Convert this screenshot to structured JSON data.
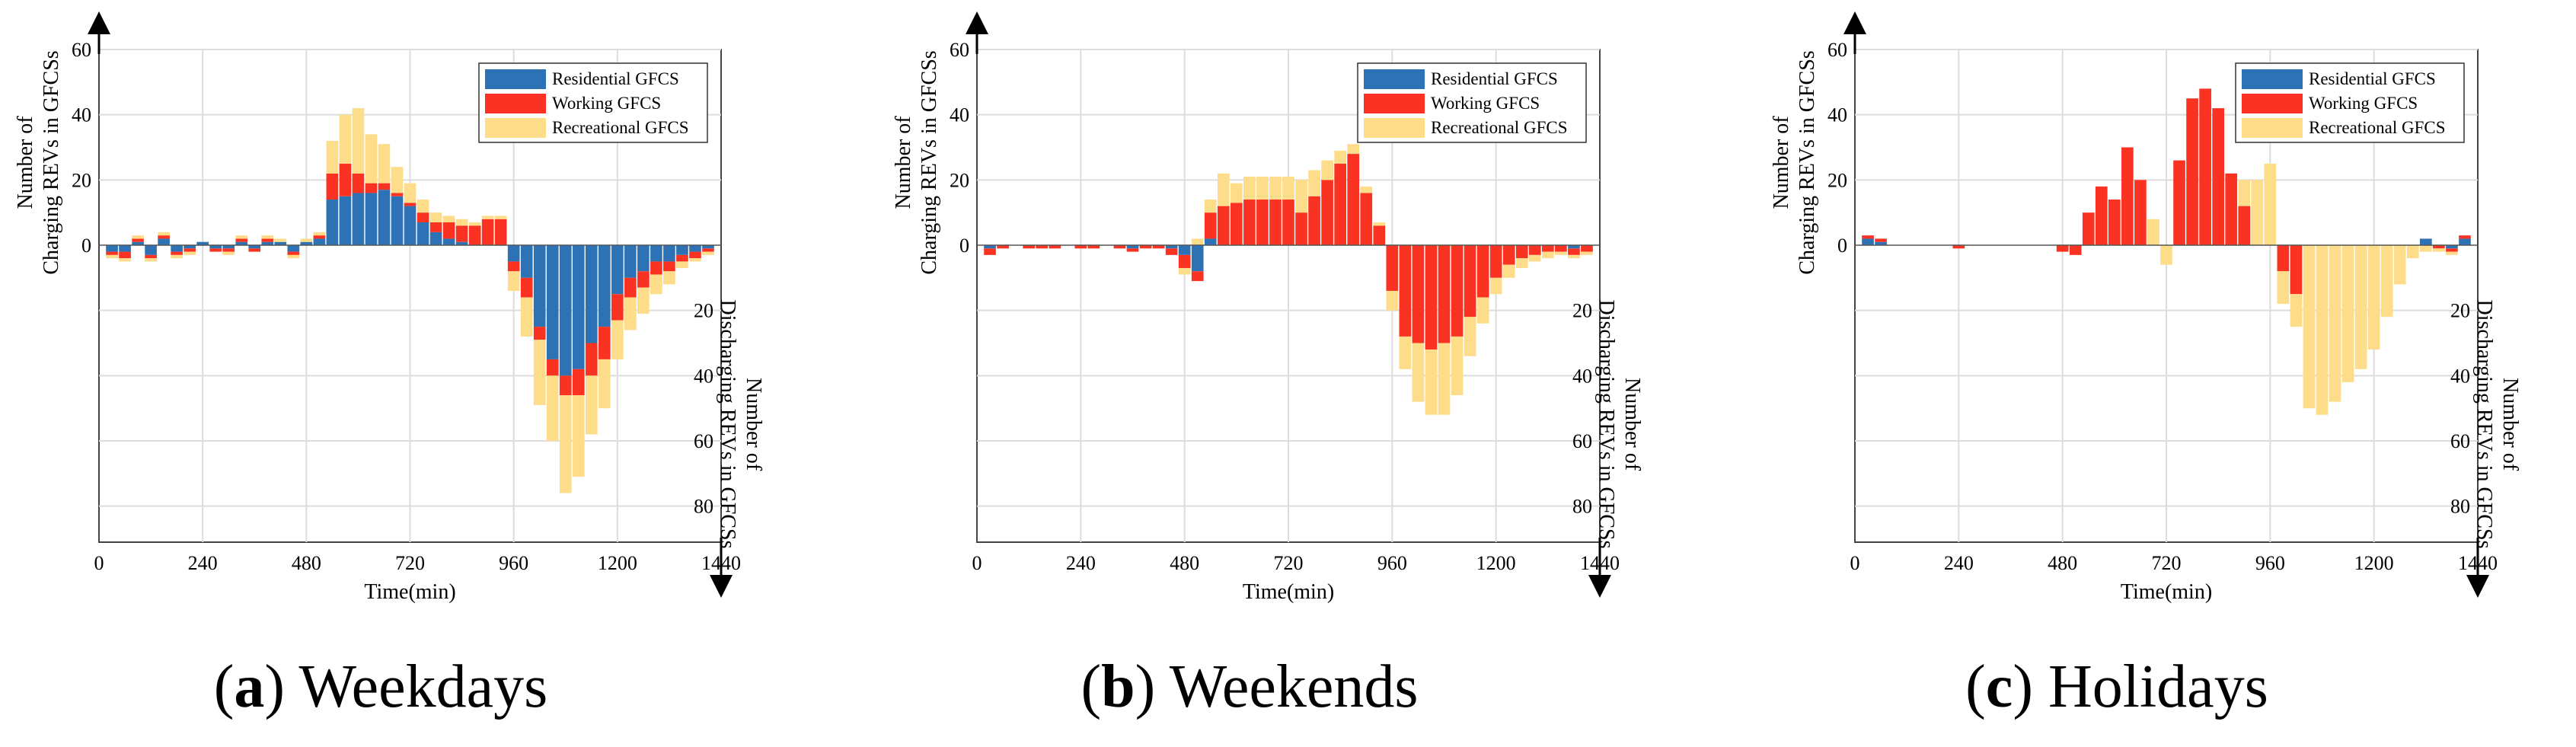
{
  "figure": {
    "x_axis_label": "Time(min)",
    "y_axis_top_label": [
      "Number of",
      "Charging REVs in GFCSs"
    ],
    "y_axis_bottom_label": [
      "Number of",
      "Discharging REVs in GFCSs"
    ],
    "x_ticks": [
      0,
      240,
      480,
      720,
      960,
      1200,
      1440
    ],
    "y_ticks_top": [
      0,
      20,
      40,
      60
    ],
    "y_ticks_bottom": [
      20,
      40,
      60,
      80
    ],
    "legend": [
      {
        "name": "Residential GFCS",
        "color": "#2e72b6"
      },
      {
        "name": "Working GFCS",
        "color": "#fa3222"
      },
      {
        "name": "Recreational GFCS",
        "color": "#fddc8a"
      }
    ]
  },
  "chart_data": [
    {
      "type": "bar",
      "stacked": true,
      "panel_letter": "a",
      "caption": "Weekdays",
      "xlim": [
        0,
        1440
      ],
      "ylim": [
        -90,
        60
      ],
      "xlabel": "Time(min)",
      "x": [
        30,
        60,
        90,
        120,
        150,
        180,
        210,
        240,
        270,
        300,
        330,
        360,
        390,
        420,
        450,
        480,
        510,
        540,
        570,
        600,
        630,
        660,
        690,
        720,
        750,
        780,
        810,
        840,
        870,
        900,
        930,
        960,
        990,
        1020,
        1050,
        1080,
        1110,
        1140,
        1170,
        1200,
        1230,
        1260,
        1290,
        1320,
        1350,
        1380,
        1410
      ],
      "series": [
        {
          "name": "Residential GFCS",
          "color": "#2e72b6",
          "values": [
            -2,
            -2,
            1,
            -3,
            2,
            -2,
            -1,
            1,
            -1,
            -1,
            1,
            -1,
            1,
            1,
            -2,
            1,
            2,
            14,
            15,
            16,
            16,
            17,
            15,
            12,
            7,
            4,
            2,
            1,
            0,
            0,
            0,
            -5,
            -10,
            -25,
            -35,
            -40,
            -38,
            -30,
            -25,
            -15,
            -10,
            -8,
            -5,
            -5,
            -3,
            -2,
            -1
          ]
        },
        {
          "name": "Working GFCS",
          "color": "#fa3222",
          "values": [
            -1,
            -2,
            1,
            -1,
            1,
            -1,
            -1,
            0,
            -1,
            -1,
            1,
            -1,
            1,
            0,
            -1,
            0,
            1,
            8,
            10,
            6,
            3,
            2,
            1,
            1,
            3,
            3,
            5,
            5,
            6,
            8,
            8,
            -3,
            -6,
            -4,
            -5,
            -6,
            -8,
            -10,
            -10,
            -8,
            -6,
            -5,
            -4,
            -3,
            -2,
            -2,
            -1
          ]
        },
        {
          "name": "Recreational GFCS",
          "color": "#fddc8a",
          "values": [
            -1,
            -1,
            1,
            -1,
            1,
            -1,
            -1,
            0,
            0,
            -1,
            1,
            0,
            1,
            1,
            -1,
            1,
            1,
            10,
            15,
            20,
            15,
            12,
            8,
            6,
            4,
            3,
            2,
            2,
            1,
            1,
            1,
            -6,
            -12,
            -20,
            -20,
            -30,
            -25,
            -18,
            -15,
            -12,
            -10,
            -8,
            -6,
            -4,
            -2,
            -1,
            -1
          ]
        }
      ]
    },
    {
      "type": "bar",
      "stacked": true,
      "panel_letter": "b",
      "caption": "Weekends",
      "xlim": [
        0,
        1440
      ],
      "ylim": [
        -90,
        60
      ],
      "xlabel": "Time(min)",
      "x": [
        30,
        60,
        90,
        120,
        150,
        180,
        210,
        240,
        270,
        300,
        330,
        360,
        390,
        420,
        450,
        480,
        510,
        540,
        570,
        600,
        630,
        660,
        690,
        720,
        750,
        780,
        810,
        840,
        870,
        900,
        930,
        960,
        990,
        1020,
        1050,
        1080,
        1110,
        1140,
        1170,
        1200,
        1230,
        1260,
        1290,
        1320,
        1350,
        1380,
        1410
      ],
      "series": [
        {
          "name": "Residential GFCS",
          "color": "#2e72b6",
          "values": [
            -1,
            0,
            0,
            0,
            0,
            0,
            0,
            0,
            0,
            0,
            0,
            -1,
            0,
            0,
            -1,
            -3,
            -8,
            2,
            0,
            0,
            0,
            0,
            0,
            0,
            0,
            0,
            0,
            0,
            0,
            0,
            0,
            0,
            0,
            0,
            0,
            0,
            0,
            0,
            0,
            0,
            0,
            0,
            0,
            0,
            0,
            -1,
            0
          ]
        },
        {
          "name": "Working GFCS",
          "color": "#fa3222",
          "values": [
            -2,
            -1,
            0,
            -1,
            -1,
            -1,
            0,
            -1,
            -1,
            0,
            -1,
            -1,
            -1,
            -1,
            -2,
            -4,
            -3,
            8,
            12,
            13,
            14,
            14,
            14,
            14,
            10,
            15,
            20,
            25,
            28,
            16,
            6,
            -14,
            -28,
            -30,
            -32,
            -30,
            -28,
            -22,
            -16,
            -10,
            -6,
            -4,
            -3,
            -2,
            -2,
            -2,
            -2
          ]
        },
        {
          "name": "Recreational GFCS",
          "color": "#fddc8a",
          "values": [
            0,
            0,
            0,
            0,
            0,
            0,
            0,
            0,
            0,
            0,
            0,
            0,
            0,
            0,
            0,
            -2,
            2,
            4,
            10,
            6,
            7,
            7,
            7,
            7,
            10,
            8,
            6,
            4,
            3,
            2,
            1,
            -6,
            -10,
            -18,
            -20,
            -22,
            -18,
            -12,
            -8,
            -5,
            -4,
            -3,
            -2,
            -2,
            -1,
            -1,
            -1
          ]
        }
      ]
    },
    {
      "type": "bar",
      "stacked": true,
      "panel_letter": "c",
      "caption": "Holidays",
      "xlim": [
        0,
        1440
      ],
      "ylim": [
        -90,
        60
      ],
      "xlabel": "Time(min)",
      "x": [
        30,
        60,
        90,
        120,
        150,
        180,
        210,
        240,
        270,
        300,
        330,
        360,
        390,
        420,
        450,
        480,
        510,
        540,
        570,
        600,
        630,
        660,
        690,
        720,
        750,
        780,
        810,
        840,
        870,
        900,
        930,
        960,
        990,
        1020,
        1050,
        1080,
        1110,
        1140,
        1170,
        1200,
        1230,
        1260,
        1290,
        1320,
        1350,
        1380,
        1410
      ],
      "series": [
        {
          "name": "Residential GFCS",
          "color": "#2e72b6",
          "values": [
            2,
            1,
            0,
            0,
            0,
            0,
            0,
            0,
            0,
            0,
            0,
            0,
            0,
            0,
            0,
            0,
            0,
            0,
            0,
            0,
            0,
            0,
            0,
            0,
            0,
            0,
            0,
            0,
            0,
            0,
            0,
            0,
            0,
            0,
            0,
            0,
            0,
            0,
            0,
            0,
            0,
            0,
            0,
            2,
            0,
            -1,
            2
          ]
        },
        {
          "name": "Working GFCS",
          "color": "#fa3222",
          "values": [
            1,
            1,
            0,
            0,
            0,
            0,
            0,
            -1,
            0,
            0,
            0,
            0,
            0,
            0,
            0,
            -2,
            -3,
            10,
            18,
            14,
            30,
            20,
            0,
            0,
            26,
            45,
            48,
            42,
            22,
            12,
            0,
            0,
            -8,
            -15,
            0,
            0,
            0,
            0,
            0,
            0,
            0,
            0,
            0,
            0,
            -1,
            -1,
            1
          ]
        },
        {
          "name": "Recreational GFCS",
          "color": "#fddc8a",
          "values": [
            0,
            0,
            0,
            0,
            0,
            0,
            0,
            0,
            0,
            0,
            0,
            0,
            0,
            0,
            0,
            0,
            0,
            0,
            0,
            0,
            0,
            0,
            8,
            -6,
            0,
            0,
            0,
            0,
            0,
            8,
            20,
            25,
            -10,
            -10,
            -50,
            -52,
            -48,
            -42,
            -38,
            -32,
            -22,
            -12,
            -4,
            -2,
            -1,
            -1,
            0
          ]
        }
      ]
    }
  ]
}
